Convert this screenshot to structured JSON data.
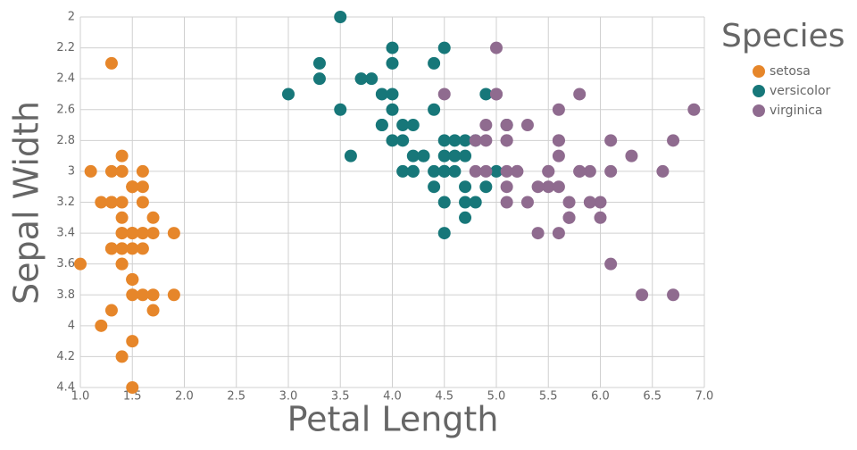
{
  "chart_data": {
    "type": "scatter",
    "x_label": "Petal Length",
    "y_label": "Sepal Width",
    "legend_title": "Species",
    "legend": "right",
    "grid": true,
    "y_reversed": true,
    "xlim": [
      1,
      7
    ],
    "ylim": [
      2,
      4.4
    ],
    "xticks": [
      {
        "value": 1,
        "label": "1.0"
      },
      {
        "value": 1.5,
        "label": "1.5"
      },
      {
        "value": 2,
        "label": "2.0"
      },
      {
        "value": 2.5,
        "label": "2.5"
      },
      {
        "value": 3,
        "label": "3.0"
      },
      {
        "value": 3.5,
        "label": "3.5"
      },
      {
        "value": 4,
        "label": "4.0"
      },
      {
        "value": 4.5,
        "label": "4.5"
      },
      {
        "value": 5,
        "label": "5.0"
      },
      {
        "value": 5.5,
        "label": "5.5"
      },
      {
        "value": 6,
        "label": "6.0"
      },
      {
        "value": 6.5,
        "label": "6.5"
      },
      {
        "value": 7,
        "label": "7.0"
      }
    ],
    "yticks": [
      2,
      2.2,
      2.4,
      2.6,
      2.8,
      3,
      3.2,
      3.4,
      3.6,
      3.8,
      4,
      4.2,
      4.4
    ],
    "series": [
      {
        "name": "setosa",
        "color": "#e6862a",
        "x": [
          1.4,
          1.4,
          1.3,
          1.5,
          1.4,
          1.7,
          1.4,
          1.5,
          1.4,
          1.5,
          1.5,
          1.6,
          1.4,
          1.1,
          1.2,
          1.5,
          1.3,
          1.4,
          1.7,
          1.5,
          1.7,
          1.5,
          1.0,
          1.7,
          1.9,
          1.6,
          1.6,
          1.5,
          1.4,
          1.6,
          1.6,
          1.5,
          1.5,
          1.4,
          1.5,
          1.2,
          1.3,
          1.4,
          1.3,
          1.5,
          1.3,
          1.3,
          1.3,
          1.6,
          1.9,
          1.4,
          1.6,
          1.4,
          1.5,
          1.4
        ],
        "values": [
          3.5,
          3.0,
          3.2,
          3.1,
          3.6,
          3.9,
          3.4,
          3.4,
          2.9,
          3.1,
          3.7,
          3.4,
          3.0,
          3.0,
          4.0,
          4.4,
          3.9,
          3.5,
          3.8,
          3.8,
          3.4,
          3.7,
          3.6,
          3.3,
          3.4,
          3.0,
          3.4,
          3.5,
          3.4,
          3.2,
          3.1,
          3.4,
          4.1,
          4.2,
          3.1,
          3.2,
          3.5,
          3.6,
          3.0,
          3.4,
          3.5,
          2.3,
          3.2,
          3.5,
          3.8,
          3.0,
          3.8,
          3.2,
          3.7,
          3.3
        ]
      },
      {
        "name": "versicolor",
        "color": "#177779",
        "x": [
          4.7,
          4.5,
          4.9,
          4.0,
          4.6,
          4.5,
          4.7,
          3.3,
          4.6,
          3.9,
          3.5,
          4.2,
          4.0,
          4.7,
          3.6,
          4.4,
          4.5,
          4.1,
          4.5,
          3.9,
          4.8,
          4.0,
          4.9,
          4.7,
          4.3,
          4.4,
          4.8,
          5.0,
          4.5,
          3.5,
          3.8,
          3.7,
          3.9,
          5.1,
          4.5,
          4.5,
          4.7,
          4.4,
          4.1,
          4.0,
          4.4,
          4.6,
          4.0,
          3.3,
          4.2,
          4.2,
          4.2,
          4.3,
          3.0,
          4.1
        ],
        "values": [
          3.2,
          3.2,
          3.1,
          2.3,
          2.8,
          2.8,
          3.3,
          2.4,
          2.9,
          2.7,
          2.0,
          3.0,
          2.2,
          2.9,
          2.9,
          3.1,
          3.0,
          2.7,
          2.2,
          2.5,
          3.2,
          2.8,
          2.5,
          2.8,
          2.9,
          3.0,
          2.8,
          3.0,
          2.9,
          2.6,
          2.4,
          2.4,
          2.7,
          2.7,
          3.0,
          3.4,
          3.1,
          2.3,
          3.0,
          2.5,
          2.6,
          3.0,
          2.6,
          2.3,
          2.7,
          3.0,
          2.9,
          2.9,
          2.5,
          2.8
        ]
      },
      {
        "name": "virginica",
        "color": "#8f6b8f",
        "x": [
          6.0,
          5.1,
          5.9,
          5.6,
          5.8,
          6.6,
          4.5,
          6.3,
          5.8,
          6.1,
          5.1,
          5.3,
          5.5,
          5.0,
          5.1,
          5.3,
          5.5,
          6.7,
          6.9,
          5.0,
          5.7,
          4.9,
          6.7,
          4.9,
          5.7,
          6.0,
          4.8,
          4.9,
          5.6,
          5.8,
          6.1,
          6.4,
          5.6,
          5.1,
          5.6,
          6.1,
          5.6,
          5.5,
          4.8,
          5.4,
          5.6,
          5.1,
          5.1,
          5.9,
          5.7,
          5.2,
          5.0,
          5.2,
          5.4,
          5.1
        ],
        "values": [
          3.3,
          2.7,
          3.0,
          2.9,
          3.0,
          3.0,
          2.5,
          2.9,
          2.5,
          3.6,
          3.2,
          2.7,
          3.0,
          2.5,
          2.8,
          3.2,
          3.0,
          3.8,
          2.6,
          2.2,
          3.2,
          2.8,
          2.8,
          2.7,
          3.3,
          3.2,
          2.8,
          3.0,
          2.8,
          3.0,
          2.8,
          3.8,
          2.8,
          2.8,
          2.6,
          3.0,
          3.4,
          3.1,
          3.0,
          3.1,
          3.1,
          3.1,
          2.7,
          3.2,
          3.3,
          3.0,
          2.5,
          3.0,
          3.4,
          3.0
        ]
      }
    ]
  }
}
